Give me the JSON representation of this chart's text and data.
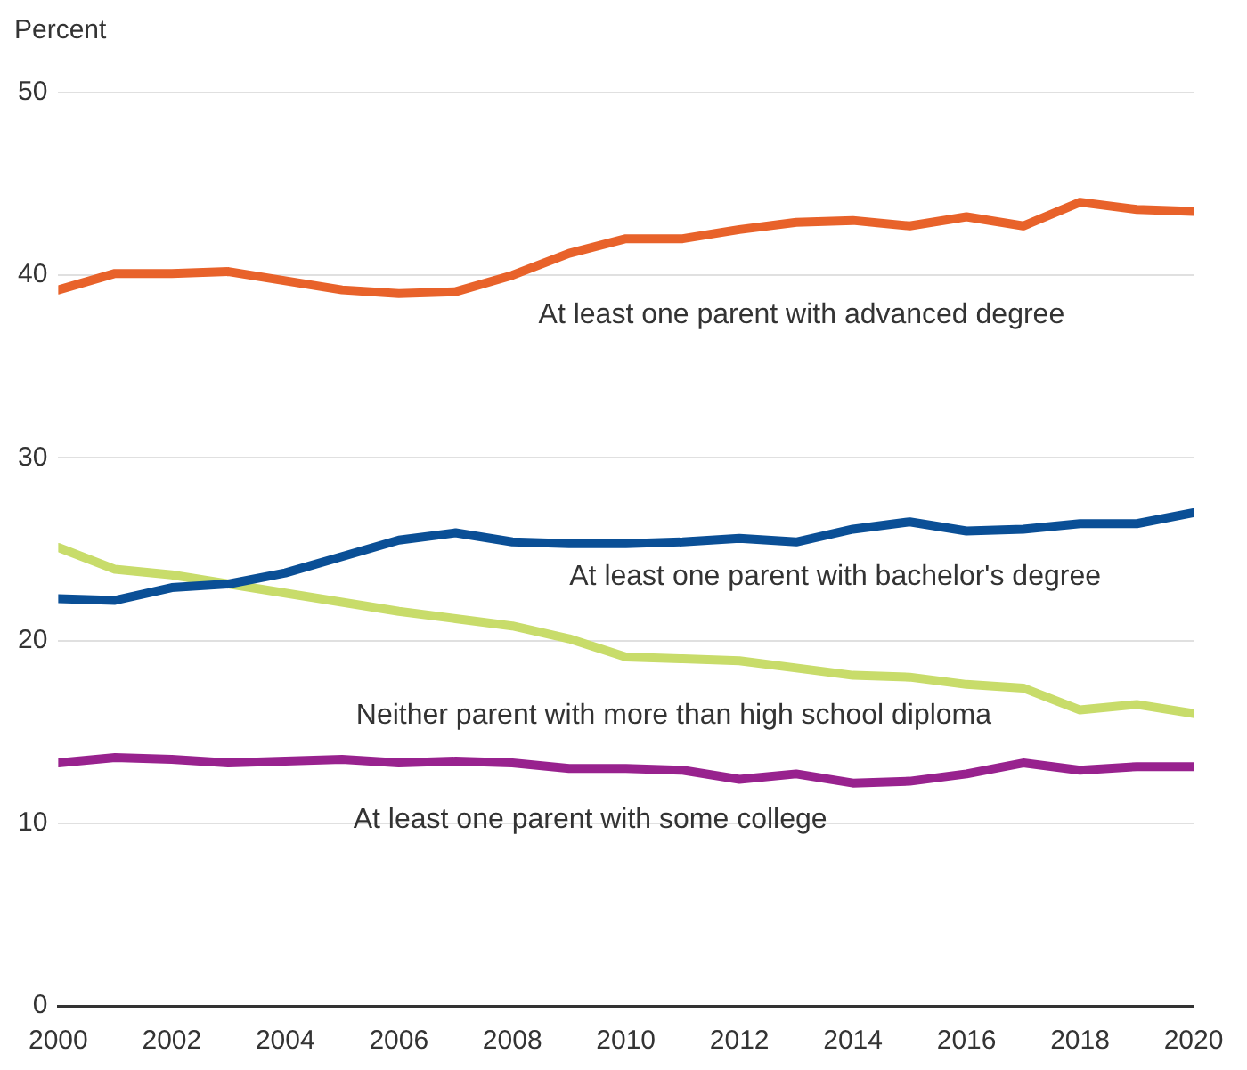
{
  "chart_data": {
    "type": "line",
    "ylabel": "Percent",
    "x": [
      2000,
      2001,
      2002,
      2003,
      2004,
      2005,
      2006,
      2007,
      2008,
      2009,
      2010,
      2011,
      2012,
      2013,
      2014,
      2015,
      2016,
      2017,
      2018,
      2019,
      2020
    ],
    "series": [
      {
        "name": "At least one parent with advanced degree",
        "color": "#e8622a",
        "values": [
          39.2,
          40.1,
          40.1,
          40.2,
          39.7,
          39.2,
          39.0,
          39.1,
          40.0,
          41.2,
          42.0,
          42.0,
          42.5,
          42.9,
          43.0,
          42.7,
          43.2,
          42.7,
          44.0,
          43.6,
          43.5
        ]
      },
      {
        "name": "At least one parent with bachelor's degree",
        "color": "#0a4f96",
        "values": [
          22.3,
          22.2,
          22.9,
          23.1,
          23.7,
          24.6,
          25.5,
          25.9,
          25.4,
          25.3,
          25.3,
          25.4,
          25.6,
          25.4,
          26.1,
          26.5,
          26.0,
          26.1,
          26.4,
          26.4,
          27.0
        ]
      },
      {
        "name": "Neither parent with more than high school diploma",
        "color": "#c8dc6a",
        "values": [
          25.1,
          23.9,
          23.6,
          23.1,
          22.6,
          22.1,
          21.6,
          21.2,
          20.8,
          20.1,
          19.1,
          19.0,
          18.9,
          18.5,
          18.1,
          18.0,
          17.6,
          17.4,
          16.2,
          16.5,
          16.0
        ]
      },
      {
        "name": "At least one parent with some college",
        "color": "#98228e",
        "values": [
          13.3,
          13.6,
          13.5,
          13.3,
          13.4,
          13.5,
          13.3,
          13.4,
          13.3,
          13.0,
          13.0,
          12.9,
          12.4,
          12.7,
          12.2,
          12.3,
          12.7,
          13.3,
          12.9,
          13.1,
          13.1
        ]
      }
    ],
    "xlim": [
      2000,
      2020
    ],
    "xticks": [
      2000,
      2002,
      2004,
      2006,
      2008,
      2010,
      2012,
      2014,
      2016,
      2018,
      2020
    ],
    "ylim": [
      0,
      50
    ],
    "yticks": [
      0,
      10,
      20,
      30,
      40,
      50
    ],
    "grid": "y",
    "legend": false,
    "marker": "none",
    "line_style": "solid"
  }
}
